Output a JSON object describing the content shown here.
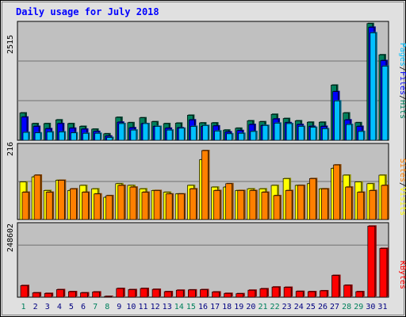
{
  "chart_data": {
    "type": "bar",
    "title": "Daily usage for July 2018",
    "colors": {
      "hits": "#00805C",
      "files": "#0000FF",
      "pages": "#00C0FF",
      "visits": "#FFFF00",
      "sites": "#FF8000",
      "kbytes": "#FF0000",
      "title": "#0000FF",
      "plot_bg": "#C0C0C0",
      "frame_bg": "#E0E0E0",
      "weekend_label": "#00805C",
      "weekday_label": "#000080"
    },
    "days": [
      "1",
      "2",
      "3",
      "4",
      "5",
      "6",
      "7",
      "8",
      "9",
      "10",
      "11",
      "12",
      "13",
      "14",
      "15",
      "16",
      "17",
      "18",
      "19",
      "20",
      "21",
      "22",
      "23",
      "24",
      "25",
      "26",
      "27",
      "28",
      "29",
      "30",
      "31"
    ],
    "weekend_days": [
      "1",
      "7",
      "8",
      "14",
      "15",
      "21",
      "22",
      "28",
      "29"
    ],
    "panels": [
      {
        "name": "traffic",
        "ymax": 2515,
        "ymax_label": "2515",
        "series_labels": [
          "Pages",
          "Files",
          "Hits"
        ],
        "series": [
          {
            "name": "Hits",
            "values": [
              590,
              360,
              360,
              440,
              360,
              300,
              240,
              140,
              495,
              380,
              485,
              400,
              360,
              370,
              540,
              375,
              375,
              220,
              260,
              420,
              400,
              560,
              470,
              420,
              390,
              390,
              1190,
              590,
              380,
              2520,
              1845
            ]
          },
          {
            "name": "Files",
            "values": [
              500,
              300,
              250,
              360,
              260,
              240,
              190,
              90,
              390,
              270,
              360,
              300,
              260,
              270,
              440,
              300,
              310,
              180,
              210,
              340,
              320,
              460,
              380,
              340,
              300,
              300,
              1050,
              440,
              300,
              2440,
              1720
            ]
          },
          {
            "name": "Pages",
            "values": [
              170,
              160,
              180,
              180,
              160,
              150,
              150,
              60,
              360,
              220,
              360,
              300,
              220,
              260,
              300,
              320,
              200,
              140,
              150,
              190,
              320,
              370,
              360,
              300,
              280,
              250,
              850,
              340,
              190,
              2320,
              1600
            ]
          }
        ]
      },
      {
        "name": "visitors",
        "ymax": 216,
        "ymax_label": "216",
        "series_labels": [
          "Sites",
          "Visits"
        ],
        "series": [
          {
            "name": "Visits",
            "values": [
              110,
              125,
              85,
              115,
              85,
              100,
              90,
              65,
              105,
              100,
              90,
              85,
              80,
              75,
              100,
              175,
              95,
              95,
              85,
              90,
              90,
              100,
              120,
              100,
              105,
              90,
              150,
              130,
              110,
              105,
              130
            ]
          },
          {
            "name": "Sites",
            "values": [
              80,
              130,
              80,
              115,
              90,
              80,
              75,
              70,
              100,
              95,
              80,
              85,
              75,
              75,
              90,
              202,
              85,
              105,
              85,
              85,
              80,
              70,
              85,
              100,
              120,
              90,
              160,
              95,
              80,
              85,
              100
            ]
          }
        ]
      },
      {
        "name": "volume",
        "ymax": 248602,
        "ymax_label": "248602",
        "series_labels": [
          "KBytes"
        ],
        "series": [
          {
            "name": "KBytes",
            "values": [
              40000,
              15000,
              13000,
              26000,
              19000,
              15000,
              18000,
              2000,
              30000,
              26000,
              30000,
              27000,
              19000,
              24000,
              25000,
              26000,
              18000,
              13000,
              12000,
              24000,
              29000,
              35000,
              34000,
              20000,
              19000,
              22000,
              75000,
              41000,
              19000,
              245000,
              168000
            ]
          }
        ]
      }
    ]
  }
}
